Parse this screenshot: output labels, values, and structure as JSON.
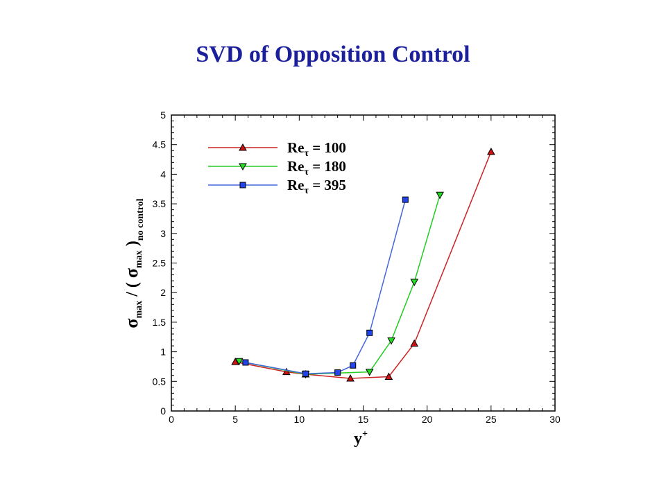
{
  "slide": {
    "title": "SVD of Opposition Control"
  },
  "chart_data": {
    "type": "line",
    "title": "SVD of Opposition Control",
    "xlabel": "y+",
    "ylabel": "σmax / (σmax)no control",
    "xlim": [
      0,
      30
    ],
    "ylim": [
      0,
      5
    ],
    "xticks": [
      0,
      5,
      10,
      15,
      20,
      25,
      30
    ],
    "yticks": [
      0,
      0.5,
      1,
      1.5,
      2,
      2.5,
      3,
      3.5,
      4,
      4.5,
      5
    ],
    "ytick_labels": [
      "0",
      "0.5",
      "1",
      "1.5",
      "2",
      "2.5",
      "3",
      "3.5",
      "4",
      "4.5",
      "5"
    ],
    "legend_position": "top-left",
    "grid": false,
    "series": [
      {
        "name": "Reτ = 100",
        "name_main": "Re",
        "name_sub": "τ",
        "name_tail": " = 100",
        "color": "#cc2222",
        "fill": "#cc1111",
        "marker": "triangle-up",
        "x": [
          5.0,
          9.0,
          10.5,
          14.0,
          17.0,
          19.0,
          25.0
        ],
        "y": [
          0.83,
          0.66,
          0.62,
          0.55,
          0.58,
          1.14,
          4.38
        ]
      },
      {
        "name": "Reτ = 180",
        "name_main": "Re",
        "name_sub": "τ",
        "name_tail": " = 180",
        "color": "#22cc22",
        "fill": "#22dd22",
        "marker": "triangle-down",
        "x": [
          5.3,
          10.5,
          15.5,
          17.2,
          19.0,
          21.0
        ],
        "y": [
          0.84,
          0.62,
          0.66,
          1.19,
          2.18,
          3.65
        ]
      },
      {
        "name": "Reτ = 395",
        "name_main": "Re",
        "name_sub": "τ",
        "name_tail": " = 395",
        "color": "#4466dd",
        "fill": "#2244ee",
        "marker": "square",
        "x": [
          5.8,
          10.5,
          13.0,
          14.2,
          15.5,
          18.3
        ],
        "y": [
          0.82,
          0.63,
          0.65,
          0.77,
          1.32,
          3.57
        ]
      }
    ]
  }
}
